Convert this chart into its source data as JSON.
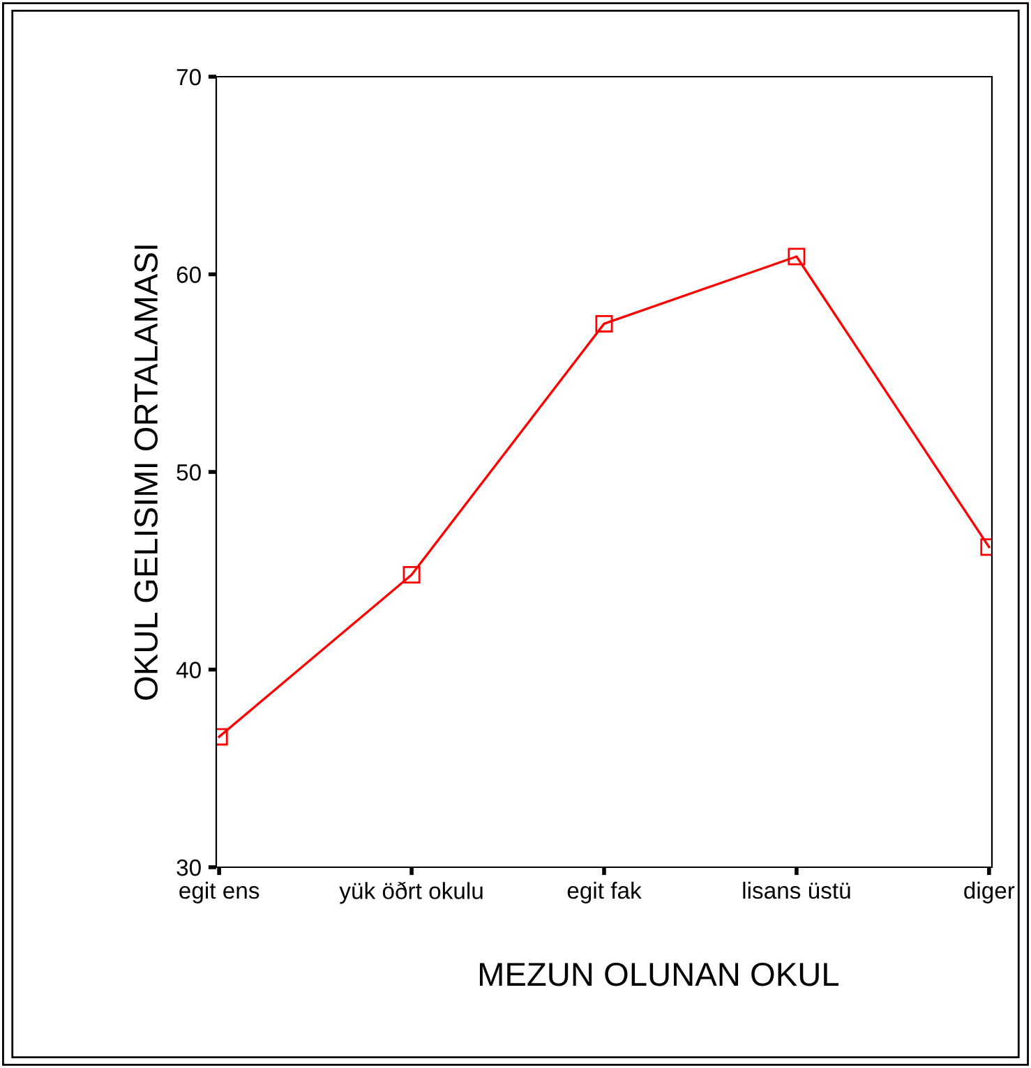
{
  "chart_data": {
    "type": "line",
    "xlabel": "MEZUN OLUNAN OKUL",
    "ylabel": "OKUL GELISIMI ORTALAMASI",
    "categories": [
      "egit ens",
      "yük öðrt okulu",
      "egit fak",
      "lisans üstü",
      "diger"
    ],
    "series": [
      {
        "color": "#ff0000",
        "values": [
          36.6,
          44.8,
          57.5,
          60.9,
          46.2
        ]
      }
    ],
    "ylim": [
      30,
      70
    ],
    "yticks": [
      30,
      40,
      50,
      60,
      70
    ],
    "grid": false,
    "legend": false,
    "marker": "square",
    "line_style": "solid"
  }
}
